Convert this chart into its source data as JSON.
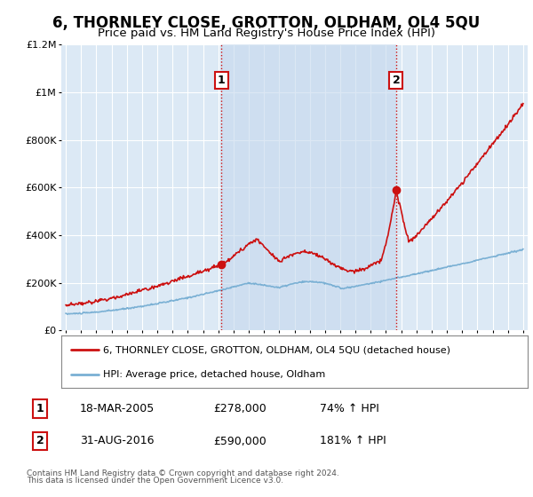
{
  "title": "6, THORNLEY CLOSE, GROTTON, OLDHAM, OL4 5QU",
  "subtitle": "Price paid vs. HM Land Registry's House Price Index (HPI)",
  "title_fontsize": 12,
  "subtitle_fontsize": 9.5,
  "background_color": "#ffffff",
  "plot_bg_color": "#dce9f5",
  "shade_color": "#c5d8ee",
  "grid_color": "#ffffff",
  "ylim": [
    0,
    1200000
  ],
  "yticks": [
    0,
    200000,
    400000,
    600000,
    800000,
    1000000,
    1200000
  ],
  "ytick_labels": [
    "£0",
    "£200K",
    "£400K",
    "£600K",
    "£800K",
    "£1M",
    "£1.2M"
  ],
  "xlim_start": 1994.7,
  "xlim_end": 2025.3,
  "xticks": [
    1995,
    1996,
    1997,
    1998,
    1999,
    2000,
    2001,
    2002,
    2003,
    2004,
    2005,
    2006,
    2007,
    2008,
    2009,
    2010,
    2011,
    2012,
    2013,
    2014,
    2015,
    2016,
    2017,
    2018,
    2019,
    2020,
    2021,
    2022,
    2023,
    2024,
    2025
  ],
  "hpi_line_color": "#7ab0d4",
  "price_line_color": "#cc1111",
  "vline_color": "#cc1111",
  "sale1_year": 2005.21,
  "sale1_price": 278000,
  "sale2_year": 2016.67,
  "sale2_price": 590000,
  "legend_label_price": "6, THORNLEY CLOSE, GROTTON, OLDHAM, OL4 5QU (detached house)",
  "legend_label_hpi": "HPI: Average price, detached house, Oldham",
  "footer1": "Contains HM Land Registry data © Crown copyright and database right 2024.",
  "footer2": "This data is licensed under the Open Government Licence v3.0.",
  "table_rows": [
    {
      "num": "1",
      "date": "18-MAR-2005",
      "price": "£278,000",
      "change": "74% ↑ HPI"
    },
    {
      "num": "2",
      "date": "31-AUG-2016",
      "price": "£590,000",
      "change": "181% ↑ HPI"
    }
  ]
}
